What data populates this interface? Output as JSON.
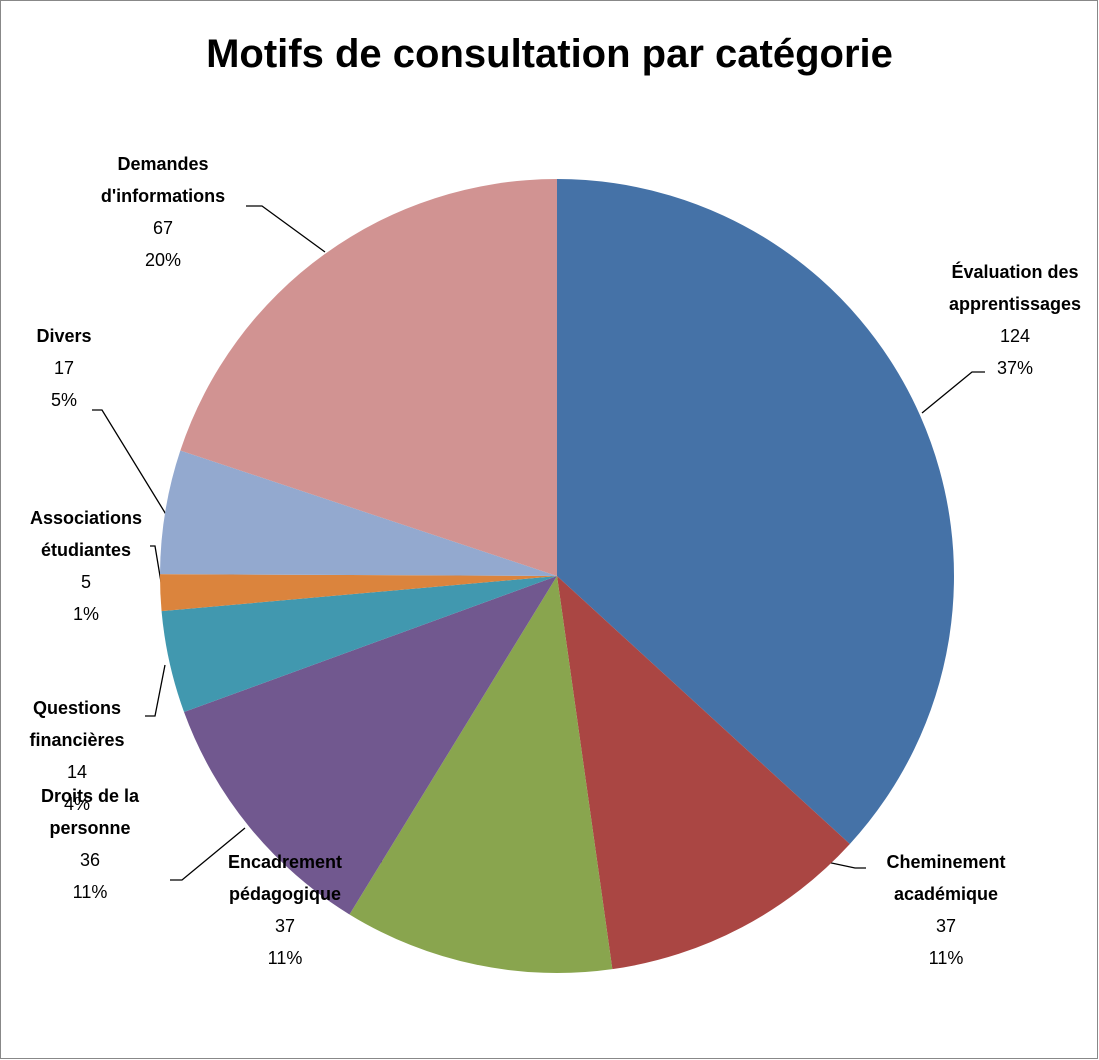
{
  "chart_data": {
    "type": "pie",
    "title": "Motifs de consultation par catégorie",
    "categories": [
      "Évaluation des apprentissages",
      "Cheminement académique",
      "Encadrement pédagogique",
      "Droits de la personne",
      "Questions financières",
      "Associations étudiantes",
      "Divers",
      "Demandes d'informations"
    ],
    "values": [
      124,
      37,
      37,
      36,
      14,
      5,
      17,
      67
    ],
    "percent_labels": [
      "37%",
      "11%",
      "11%",
      "11%",
      "4%",
      "1%",
      "5%",
      "20%"
    ],
    "colors": [
      "#4572a7",
      "#aa4643",
      "#89a54e",
      "#71588f",
      "#4198af",
      "#db843d",
      "#93a9cf",
      "#d19392"
    ]
  }
}
